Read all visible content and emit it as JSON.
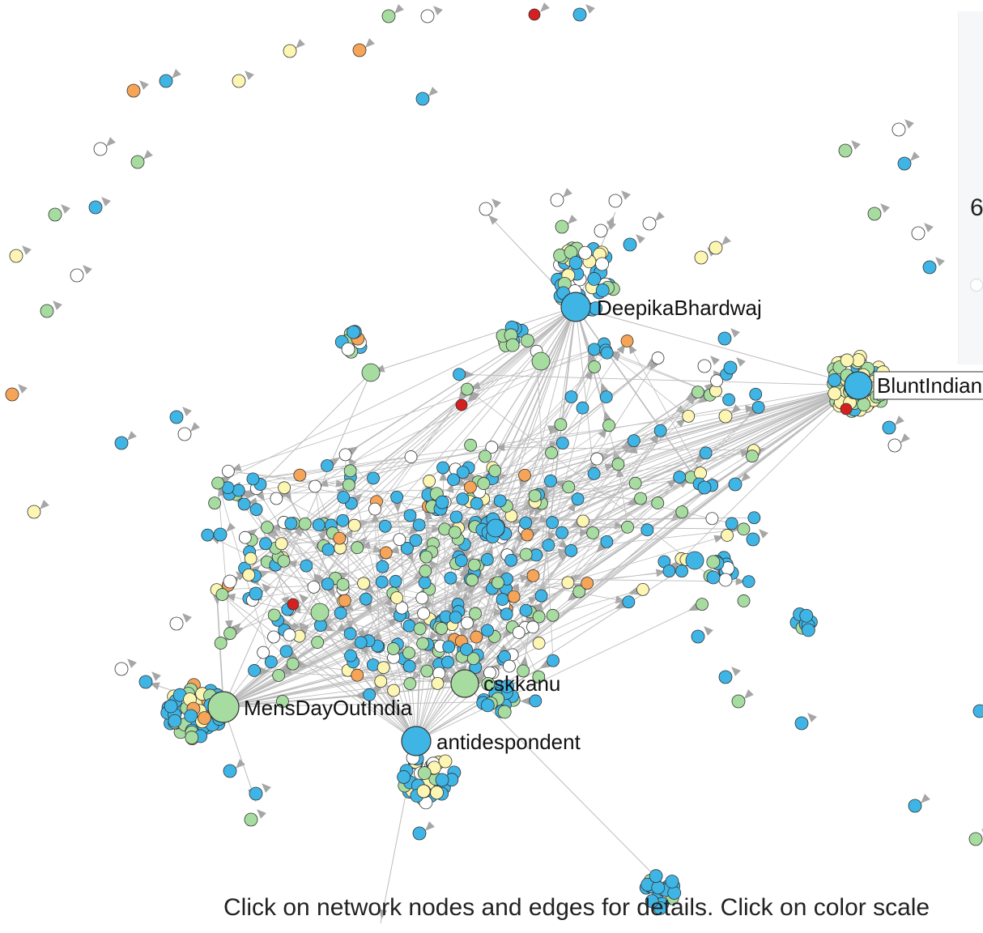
{
  "footer": {
    "hint": "Click on network nodes and edges for details. Click on color scale"
  },
  "side_panel": {
    "value": "6"
  },
  "colors": {
    "blue": "#3fb5e6",
    "green": "#a7dca0",
    "yellow": "#fcf6b2",
    "orange": "#f5a458",
    "red": "#d42020",
    "white": "#ffffff",
    "edge": "#bcbcbc",
    "arrow": "#a6a6a6",
    "node_stroke": "#333333"
  },
  "hubs": [
    {
      "id": "DeepikaBhardwaj",
      "label": "DeepikaBhardwaj",
      "color": "blue"
    },
    {
      "id": "BluntIndian",
      "label": "BluntIndian",
      "color": "blue"
    },
    {
      "id": "MensDayOutIndia",
      "label": "MensDayOutIndia",
      "color": "green"
    },
    {
      "id": "cskkanu",
      "label": "cskkanu",
      "color": "green"
    },
    {
      "id": "antidespondent",
      "label": "antidespondent",
      "color": "blue"
    }
  ]
}
